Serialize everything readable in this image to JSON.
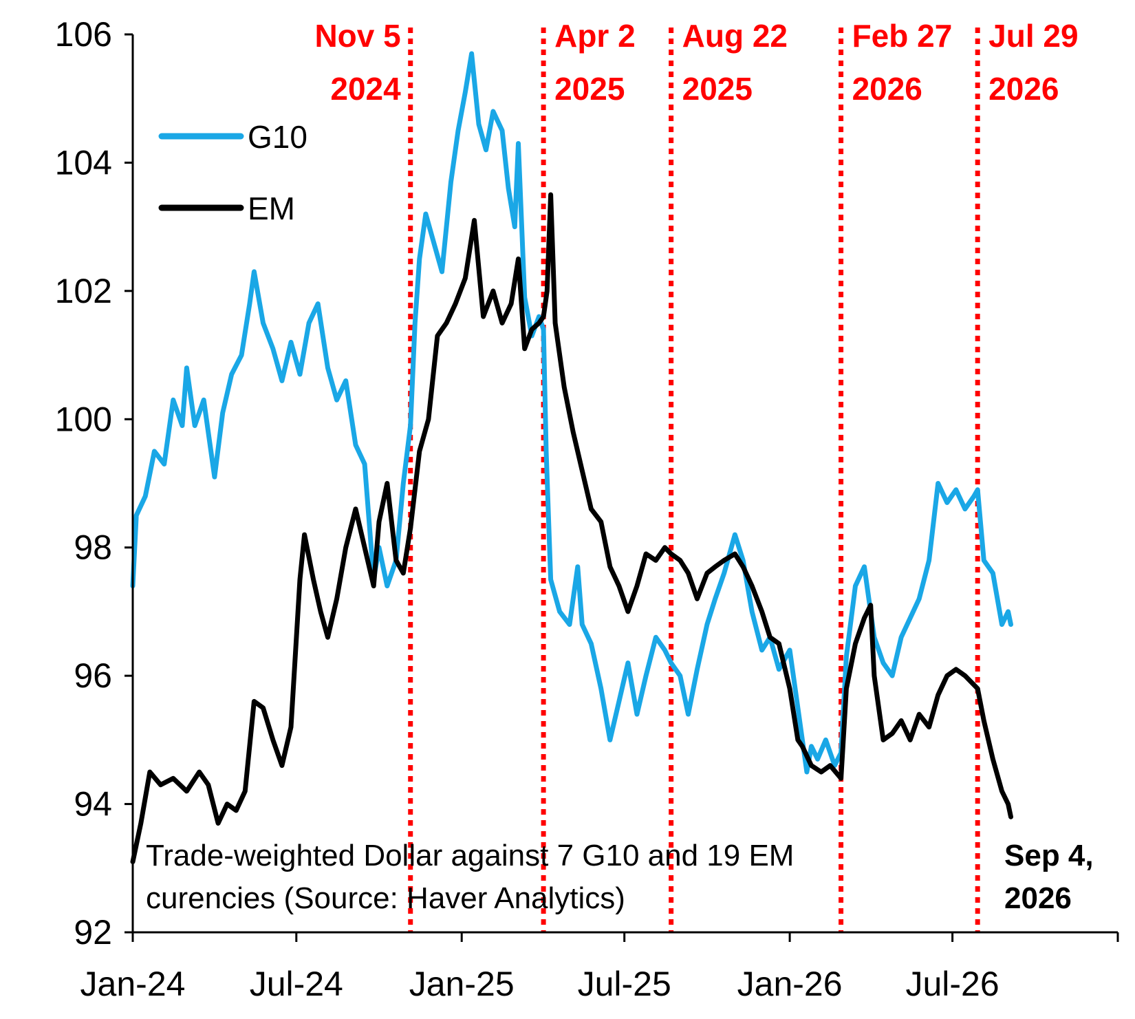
{
  "chart_data": {
    "type": "line",
    "title": "",
    "xlabel": "",
    "ylabel": "",
    "ylim": [
      92,
      106
    ],
    "yticks": [
      "92",
      "94",
      "96",
      "98",
      "100",
      "102",
      "104",
      "106"
    ],
    "xticks": [
      {
        "date": "2024-01-01",
        "label": "Jan-24"
      },
      {
        "date": "2024-07-01",
        "label": "Jul-24"
      },
      {
        "date": "2025-01-01",
        "label": "Jan-25"
      },
      {
        "date": "2025-07-01",
        "label": "Jul-25"
      },
      {
        "date": "2026-01-01",
        "label": "Jan-26"
      },
      {
        "date": "2026-07-01",
        "label": "Jul-26"
      }
    ],
    "xlim": [
      "2024-01-01",
      "2027-01-01"
    ],
    "grid": false,
    "legend": "top-left",
    "series": [
      {
        "name": "G10",
        "color": "#1aa7e6",
        "points": [
          [
            "2024-01-01",
            97.4
          ],
          [
            "2024-01-05",
            98.5
          ],
          [
            "2024-01-15",
            98.8
          ],
          [
            "2024-01-25",
            99.5
          ],
          [
            "2024-02-05",
            99.3
          ],
          [
            "2024-02-15",
            100.3
          ],
          [
            "2024-02-25",
            99.9
          ],
          [
            "2024-03-01",
            100.8
          ],
          [
            "2024-03-10",
            99.9
          ],
          [
            "2024-03-20",
            100.3
          ],
          [
            "2024-04-01",
            99.1
          ],
          [
            "2024-04-10",
            100.1
          ],
          [
            "2024-04-20",
            100.7
          ],
          [
            "2024-05-01",
            101.0
          ],
          [
            "2024-05-10",
            101.8
          ],
          [
            "2024-05-15",
            102.3
          ],
          [
            "2024-05-25",
            101.5
          ],
          [
            "2024-06-05",
            101.1
          ],
          [
            "2024-06-15",
            100.6
          ],
          [
            "2024-06-25",
            101.2
          ],
          [
            "2024-07-05",
            100.7
          ],
          [
            "2024-07-15",
            101.5
          ],
          [
            "2024-07-25",
            101.8
          ],
          [
            "2024-08-05",
            100.8
          ],
          [
            "2024-08-15",
            100.3
          ],
          [
            "2024-08-25",
            100.6
          ],
          [
            "2024-09-05",
            99.6
          ],
          [
            "2024-09-15",
            99.3
          ],
          [
            "2024-09-25",
            97.5
          ],
          [
            "2024-10-01",
            98.0
          ],
          [
            "2024-10-10",
            97.4
          ],
          [
            "2024-10-20",
            97.8
          ],
          [
            "2024-10-28",
            99.0
          ],
          [
            "2024-11-05",
            99.9
          ],
          [
            "2024-11-10",
            101.5
          ],
          [
            "2024-11-15",
            102.5
          ],
          [
            "2024-11-22",
            103.2
          ],
          [
            "2024-11-30",
            102.8
          ],
          [
            "2024-12-10",
            102.3
          ],
          [
            "2024-12-20",
            103.7
          ],
          [
            "2024-12-28",
            104.5
          ],
          [
            "2025-01-05",
            105.1
          ],
          [
            "2025-01-12",
            105.7
          ],
          [
            "2025-01-20",
            104.6
          ],
          [
            "2025-01-28",
            104.2
          ],
          [
            "2025-02-05",
            104.8
          ],
          [
            "2025-02-15",
            104.5
          ],
          [
            "2025-02-22",
            103.6
          ],
          [
            "2025-03-01",
            103.0
          ],
          [
            "2025-03-05",
            104.3
          ],
          [
            "2025-03-12",
            101.9
          ],
          [
            "2025-03-20",
            101.3
          ],
          [
            "2025-03-28",
            101.6
          ],
          [
            "2025-04-02",
            101.4
          ],
          [
            "2025-04-05",
            99.5
          ],
          [
            "2025-04-10",
            97.5
          ],
          [
            "2025-04-20",
            97.0
          ],
          [
            "2025-05-01",
            96.8
          ],
          [
            "2025-05-10",
            97.7
          ],
          [
            "2025-05-15",
            96.8
          ],
          [
            "2025-05-25",
            96.5
          ],
          [
            "2025-06-05",
            95.8
          ],
          [
            "2025-06-15",
            95.0
          ],
          [
            "2025-06-25",
            95.6
          ],
          [
            "2025-07-05",
            96.2
          ],
          [
            "2025-07-15",
            95.4
          ],
          [
            "2025-07-25",
            96.0
          ],
          [
            "2025-08-05",
            96.6
          ],
          [
            "2025-08-15",
            96.4
          ],
          [
            "2025-08-22",
            96.2
          ],
          [
            "2025-09-01",
            96.0
          ],
          [
            "2025-09-10",
            95.4
          ],
          [
            "2025-09-20",
            96.1
          ],
          [
            "2025-10-01",
            96.8
          ],
          [
            "2025-10-10",
            97.2
          ],
          [
            "2025-10-20",
            97.6
          ],
          [
            "2025-11-01",
            98.2
          ],
          [
            "2025-11-10",
            97.8
          ],
          [
            "2025-11-20",
            97.0
          ],
          [
            "2025-12-01",
            96.4
          ],
          [
            "2025-12-10",
            96.6
          ],
          [
            "2025-12-20",
            96.1
          ],
          [
            "2026-01-01",
            96.4
          ],
          [
            "2026-01-10",
            95.5
          ],
          [
            "2026-01-20",
            94.5
          ],
          [
            "2026-01-25",
            94.9
          ],
          [
            "2026-02-01",
            94.7
          ],
          [
            "2026-02-10",
            95.0
          ],
          [
            "2026-02-20",
            94.6
          ],
          [
            "2026-02-27",
            94.8
          ],
          [
            "2026-03-05",
            96.3
          ],
          [
            "2026-03-15",
            97.4
          ],
          [
            "2026-03-25",
            97.7
          ],
          [
            "2026-04-05",
            96.6
          ],
          [
            "2026-04-15",
            96.2
          ],
          [
            "2026-04-25",
            96.0
          ],
          [
            "2026-05-05",
            96.6
          ],
          [
            "2026-05-15",
            96.9
          ],
          [
            "2026-05-25",
            97.2
          ],
          [
            "2026-06-05",
            97.8
          ],
          [
            "2026-06-15",
            99.0
          ],
          [
            "2026-06-25",
            98.7
          ],
          [
            "2026-07-05",
            98.9
          ],
          [
            "2026-07-15",
            98.6
          ],
          [
            "2026-07-25",
            98.8
          ],
          [
            "2026-07-29",
            98.9
          ],
          [
            "2026-08-05",
            97.8
          ],
          [
            "2026-08-15",
            97.6
          ],
          [
            "2026-08-25",
            96.8
          ],
          [
            "2026-09-01",
            97.0
          ],
          [
            "2026-09-04",
            96.8
          ]
        ]
      },
      {
        "name": "EM",
        "color": "#000000",
        "points": [
          [
            "2024-01-01",
            93.1
          ],
          [
            "2024-01-10",
            93.7
          ],
          [
            "2024-01-20",
            94.5
          ],
          [
            "2024-02-01",
            94.3
          ],
          [
            "2024-02-15",
            94.4
          ],
          [
            "2024-03-01",
            94.2
          ],
          [
            "2024-03-15",
            94.5
          ],
          [
            "2024-03-25",
            94.3
          ],
          [
            "2024-04-05",
            93.7
          ],
          [
            "2024-04-15",
            94.0
          ],
          [
            "2024-04-25",
            93.9
          ],
          [
            "2024-05-05",
            94.2
          ],
          [
            "2024-05-15",
            95.6
          ],
          [
            "2024-05-25",
            95.5
          ],
          [
            "2024-06-05",
            95.0
          ],
          [
            "2024-06-15",
            94.6
          ],
          [
            "2024-06-25",
            95.2
          ],
          [
            "2024-07-05",
            97.5
          ],
          [
            "2024-07-10",
            98.2
          ],
          [
            "2024-07-20",
            97.5
          ],
          [
            "2024-07-28",
            97.0
          ],
          [
            "2024-08-05",
            96.6
          ],
          [
            "2024-08-15",
            97.2
          ],
          [
            "2024-08-25",
            98.0
          ],
          [
            "2024-09-05",
            98.6
          ],
          [
            "2024-09-15",
            98.0
          ],
          [
            "2024-09-25",
            97.4
          ],
          [
            "2024-10-01",
            98.4
          ],
          [
            "2024-10-10",
            99.0
          ],
          [
            "2024-10-20",
            97.8
          ],
          [
            "2024-10-28",
            97.6
          ],
          [
            "2024-11-05",
            98.3
          ],
          [
            "2024-11-15",
            99.5
          ],
          [
            "2024-11-25",
            100.0
          ],
          [
            "2024-12-05",
            101.3
          ],
          [
            "2024-12-15",
            101.5
          ],
          [
            "2024-12-25",
            101.8
          ],
          [
            "2025-01-05",
            102.2
          ],
          [
            "2025-01-15",
            103.1
          ],
          [
            "2025-01-25",
            101.6
          ],
          [
            "2025-02-05",
            102.0
          ],
          [
            "2025-02-15",
            101.5
          ],
          [
            "2025-02-25",
            101.8
          ],
          [
            "2025-03-05",
            102.5
          ],
          [
            "2025-03-12",
            101.1
          ],
          [
            "2025-03-20",
            101.4
          ],
          [
            "2025-03-28",
            101.5
          ],
          [
            "2025-04-02",
            101.6
          ],
          [
            "2025-04-06",
            102.0
          ],
          [
            "2025-04-10",
            103.5
          ],
          [
            "2025-04-15",
            101.5
          ],
          [
            "2025-04-25",
            100.5
          ],
          [
            "2025-05-05",
            99.8
          ],
          [
            "2025-05-15",
            99.2
          ],
          [
            "2025-05-25",
            98.6
          ],
          [
            "2025-06-05",
            98.4
          ],
          [
            "2025-06-15",
            97.7
          ],
          [
            "2025-06-25",
            97.4
          ],
          [
            "2025-07-05",
            97.0
          ],
          [
            "2025-07-15",
            97.4
          ],
          [
            "2025-07-25",
            97.9
          ],
          [
            "2025-08-05",
            97.8
          ],
          [
            "2025-08-15",
            98.0
          ],
          [
            "2025-08-22",
            97.9
          ],
          [
            "2025-09-01",
            97.8
          ],
          [
            "2025-09-10",
            97.6
          ],
          [
            "2025-09-20",
            97.2
          ],
          [
            "2025-10-01",
            97.6
          ],
          [
            "2025-10-10",
            97.7
          ],
          [
            "2025-10-20",
            97.8
          ],
          [
            "2025-11-01",
            97.9
          ],
          [
            "2025-11-10",
            97.7
          ],
          [
            "2025-11-20",
            97.4
          ],
          [
            "2025-12-01",
            97.0
          ],
          [
            "2025-12-10",
            96.6
          ],
          [
            "2025-12-20",
            96.5
          ],
          [
            "2026-01-01",
            95.8
          ],
          [
            "2026-01-10",
            95.0
          ],
          [
            "2026-01-15",
            94.9
          ],
          [
            "2026-01-25",
            94.6
          ],
          [
            "2026-02-05",
            94.5
          ],
          [
            "2026-02-15",
            94.6
          ],
          [
            "2026-02-27",
            94.4
          ],
          [
            "2026-03-05",
            95.8
          ],
          [
            "2026-03-15",
            96.5
          ],
          [
            "2026-03-25",
            96.9
          ],
          [
            "2026-04-01",
            97.1
          ],
          [
            "2026-04-05",
            96.0
          ],
          [
            "2026-04-15",
            95.0
          ],
          [
            "2026-04-25",
            95.1
          ],
          [
            "2026-05-05",
            95.3
          ],
          [
            "2026-05-15",
            95.0
          ],
          [
            "2026-05-25",
            95.4
          ],
          [
            "2026-06-05",
            95.2
          ],
          [
            "2026-06-15",
            95.7
          ],
          [
            "2026-06-25",
            96.0
          ],
          [
            "2026-07-05",
            96.1
          ],
          [
            "2026-07-15",
            96.0
          ],
          [
            "2026-07-29",
            95.8
          ],
          [
            "2026-08-05",
            95.3
          ],
          [
            "2026-08-15",
            94.7
          ],
          [
            "2026-08-25",
            94.2
          ],
          [
            "2026-09-01",
            94.0
          ],
          [
            "2026-09-04",
            93.8
          ]
        ]
      }
    ],
    "events": [
      {
        "date": "2024-11-05",
        "line1": "Nov 5",
        "line2": "2024"
      },
      {
        "date": "2025-04-02",
        "line1": "Apr 2",
        "line2": "2025"
      },
      {
        "date": "2025-08-22",
        "line1": "Aug 22",
        "line2": "2025"
      },
      {
        "date": "2026-02-27",
        "line1": "Feb 27",
        "line2": "2026"
      },
      {
        "date": "2026-07-29",
        "line1": "Jul 29",
        "line2": "2026"
      }
    ],
    "event_color": "#ff0000",
    "annotation": {
      "line1": "Trade-weighted Dollar against 7 G10 and 19 EM",
      "line2": "curencies (Source: Haver Analytics)"
    },
    "end_label": {
      "line1": "Sep 4,",
      "line2": "2026"
    }
  }
}
